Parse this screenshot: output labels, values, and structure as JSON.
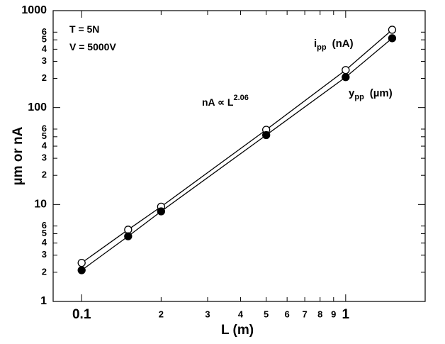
{
  "chart_data": {
    "type": "scatter",
    "x_label": "L (m)",
    "y_label": "µm or nA",
    "log_x": true,
    "log_y": true,
    "grid": false,
    "xlim": [
      0.078,
      2.0
    ],
    "ylim": [
      1,
      1000
    ],
    "xticks": [
      0.1,
      {
        "value": 0.2,
        "label": "2"
      },
      {
        "value": 0.3,
        "label": "3"
      },
      {
        "value": 0.4,
        "label": "4"
      },
      {
        "value": 0.5,
        "label": "5"
      },
      {
        "value": 0.6,
        "label": "6"
      },
      {
        "value": 0.7,
        "label": "7"
      },
      {
        "value": 0.8,
        "label": "8"
      },
      {
        "value": 0.9,
        "label": "9"
      },
      1
    ],
    "yticks": [
      1,
      2,
      3,
      4,
      5,
      6,
      10,
      {
        "value": 20,
        "label": "2"
      },
      {
        "value": 30,
        "label": "3"
      },
      {
        "value": 40,
        "label": "4"
      },
      {
        "value": 50,
        "label": "5"
      },
      {
        "value": 60,
        "label": "6"
      },
      100,
      {
        "value": 200,
        "label": "2"
      },
      {
        "value": 300,
        "label": "3"
      },
      {
        "value": 400,
        "label": "4"
      },
      {
        "value": 500,
        "label": "5"
      },
      {
        "value": 600,
        "label": "6"
      },
      1000
    ],
    "x": [
      0.1,
      0.15,
      0.2,
      0.5,
      1.0,
      1.5
    ],
    "series": [
      {
        "name": "i",
        "name_sub": "pp",
        "name_unit": "(nA)",
        "color": "#000000",
        "marker": "open",
        "values": [
          2.5,
          5.5,
          9.5,
          59,
          244,
          635
        ]
      },
      {
        "name": "y",
        "name_sub": "pp",
        "name_unit": "(µm)",
        "color": "#000000",
        "marker": "filled",
        "values": [
          2.1,
          4.7,
          8.5,
          52,
          206,
          519
        ]
      }
    ],
    "annotations": [
      {
        "text": "T = 5N"
      },
      {
        "text": "V = 5000V"
      },
      {
        "text": "nA ∝ L",
        "sup": "2.06"
      }
    ]
  }
}
